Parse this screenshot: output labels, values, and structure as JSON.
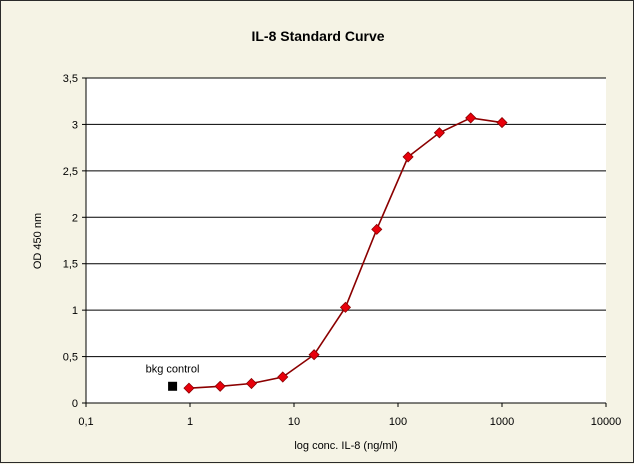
{
  "chart_data": {
    "type": "scatter",
    "title": "IL-8 Standard Curve",
    "xlabel": "log conc. IL-8 (ng/ml)",
    "ylabel": "OD 450 nm",
    "x_scale": "log",
    "xlim": [
      0.1,
      10000
    ],
    "ylim": [
      0,
      3.5
    ],
    "x_ticks": [
      0.1,
      1,
      10,
      100,
      1000,
      10000
    ],
    "x_tick_labels": [
      "0,1",
      "1",
      "10",
      "100",
      "1000",
      "10000"
    ],
    "y_ticks": [
      0,
      0.5,
      1,
      1.5,
      2,
      2.5,
      3,
      3.5
    ],
    "y_tick_labels": [
      "0",
      "0,5",
      "1",
      "1,5",
      "2",
      "2,5",
      "3",
      "3,5"
    ],
    "grid": "horizontal",
    "legend": "none",
    "series": [
      {
        "x": [
          0.977,
          1.95,
          3.9,
          7.8,
          15.6,
          31.25,
          62.5,
          125,
          250,
          500,
          1000
        ],
        "y": [
          0.16,
          0.18,
          0.21,
          0.28,
          0.52,
          1.03,
          1.87,
          2.65,
          2.91,
          3.07,
          3.02
        ],
        "color": "#E8000B",
        "line_color": "#8B0000",
        "marker": "diamond"
      }
    ],
    "annotations": [
      {
        "text": "bkg control",
        "x": 0.68,
        "y": 0.18,
        "marker": "square",
        "color": "#000000"
      }
    ]
  }
}
